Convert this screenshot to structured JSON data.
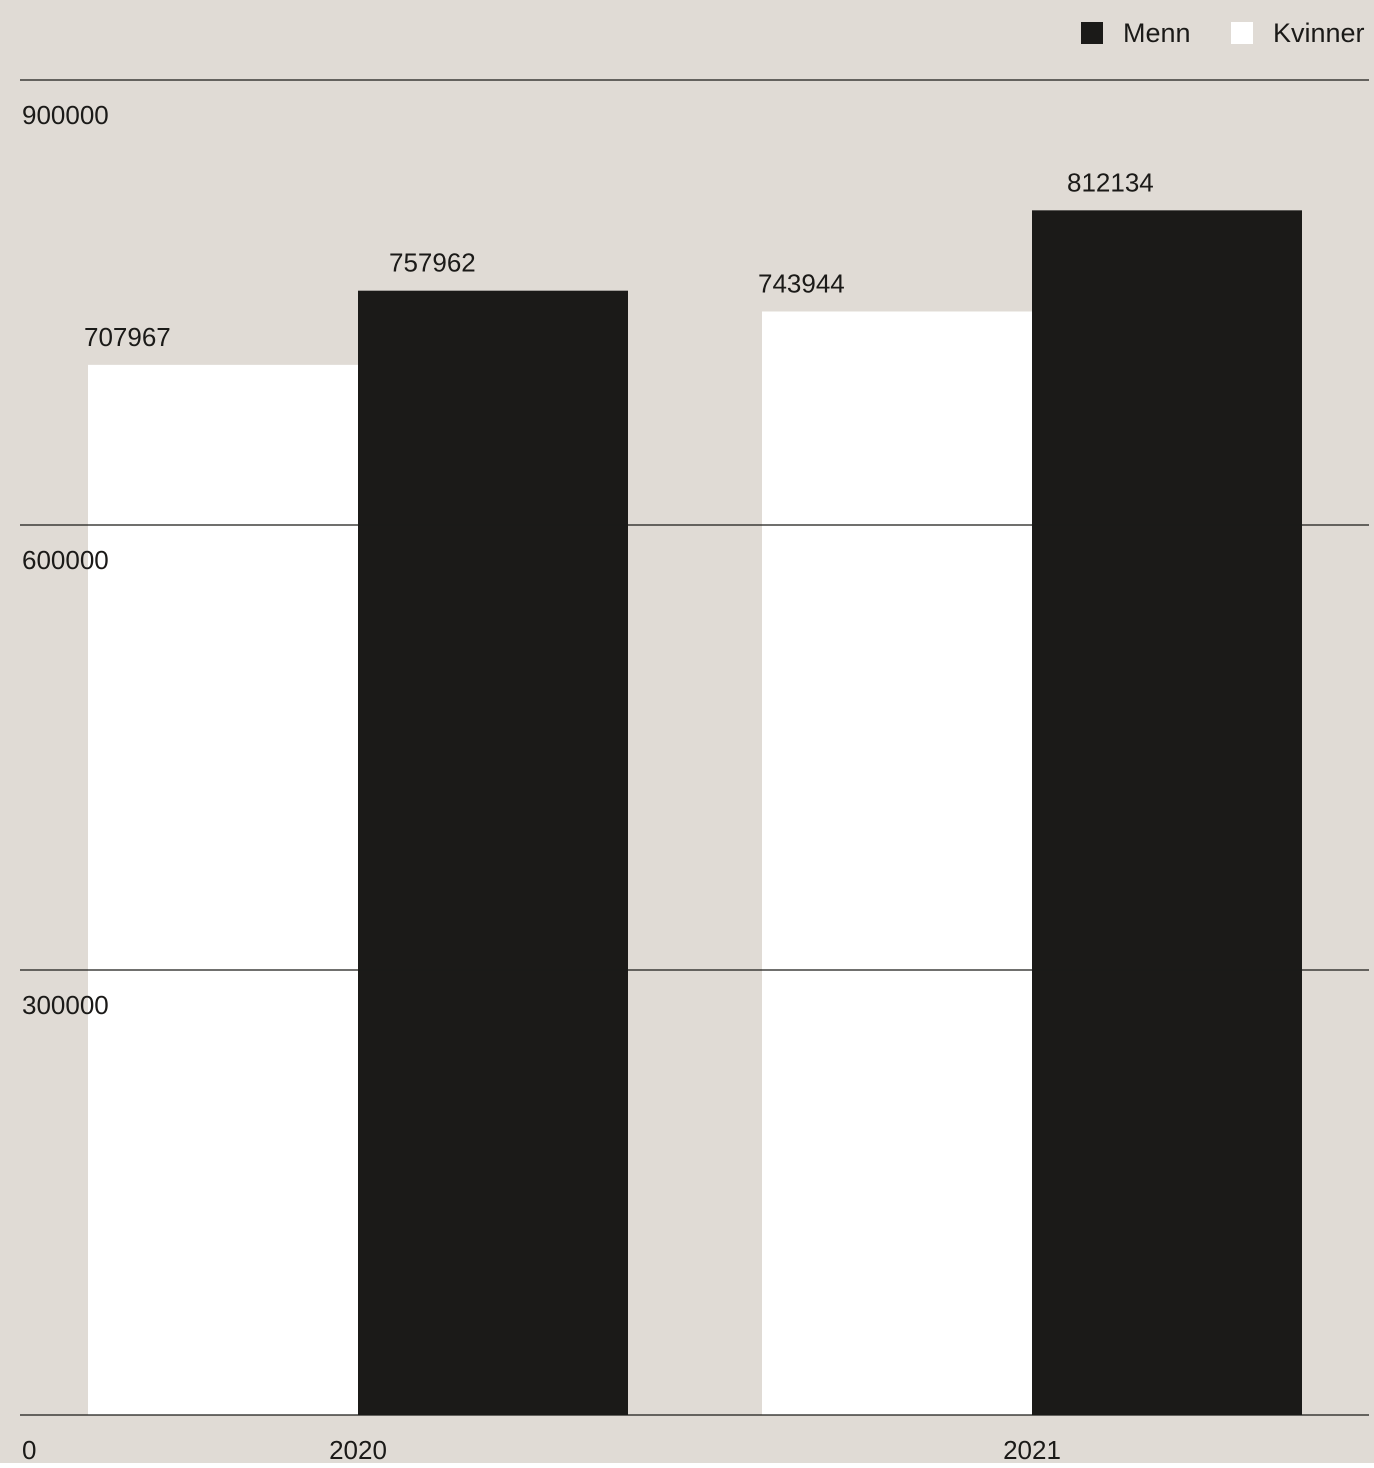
{
  "chart_data": {
    "type": "bar",
    "categories": [
      "2020",
      "2021"
    ],
    "series": [
      {
        "name": "Kvinner",
        "values": [
          707967,
          743944
        ],
        "color": "#ffffff"
      },
      {
        "name": "Menn",
        "values": [
          757962,
          812134
        ],
        "color": "#1b1a18"
      }
    ],
    "legend": {
      "position": "top-right",
      "items": [
        {
          "label": "Menn",
          "color": "#1b1a18"
        },
        {
          "label": "Kvinner",
          "color": "#ffffff"
        }
      ]
    },
    "y_ticks": [
      "0",
      "300000",
      "600000",
      "900000"
    ],
    "ylim": [
      0,
      900000
    ],
    "grid": true,
    "xlabel": "",
    "ylabel": "",
    "colors": {
      "background": "#e0dbd5",
      "gridline": "#1b1a18",
      "text": "#1b1a18"
    }
  }
}
